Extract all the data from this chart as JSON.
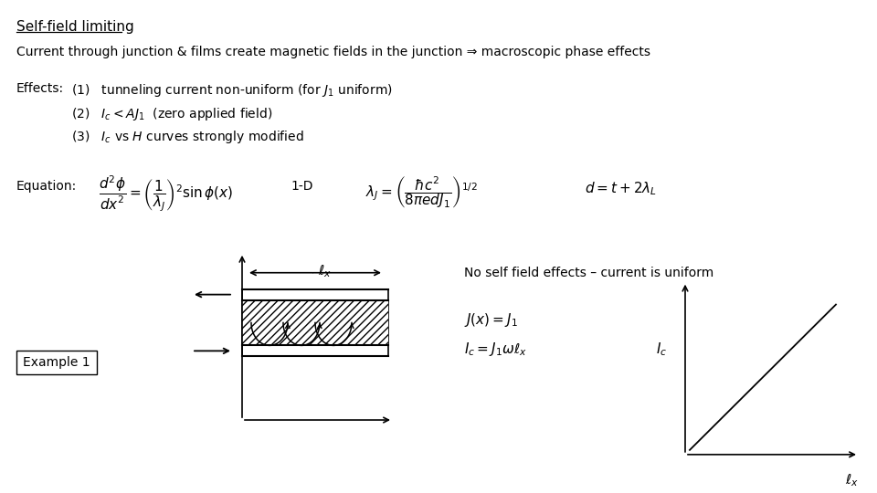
{
  "bg_color": "#ffffff",
  "title": "Self-field limiting",
  "subtitle": "Current through junction & films create magnetic fields in the junction ⇒ macroscopic phase effects",
  "effects_label": "Effects:",
  "effect1": "(1)   tunneling current non-uniform (for $J_1$ uniform)",
  "effect2": "(2)   $I_c < AJ_1$  (zero applied field)",
  "effect3": "(3)   $I_c$ vs $H$ curves strongly modified",
  "equation_label": "Equation:",
  "eq1": "$\\dfrac{d^2\\phi}{dx^2} = \\left(\\dfrac{1}{\\lambda_J}\\right)^2 \\sin\\phi(x)$",
  "eq1b": "1-D",
  "eq2": "$\\lambda_J = \\left(\\dfrac{\\hbar c^2}{8\\pi e d J_1}\\right)^{1/2}$",
  "eq3": "$d = t + 2\\lambda_L$",
  "no_self_field": "No self field effects – current is uniform",
  "jx_eq": "$J(x) = J_1$",
  "ic_eq": "$I_c = J_1 \\omega \\ell_x$",
  "ic_label": "$I_c$",
  "ellx_label": "$\\ell_x$",
  "example_label": "Example 1",
  "font_size_title": 11,
  "font_size_body": 10,
  "font_size_math": 11
}
